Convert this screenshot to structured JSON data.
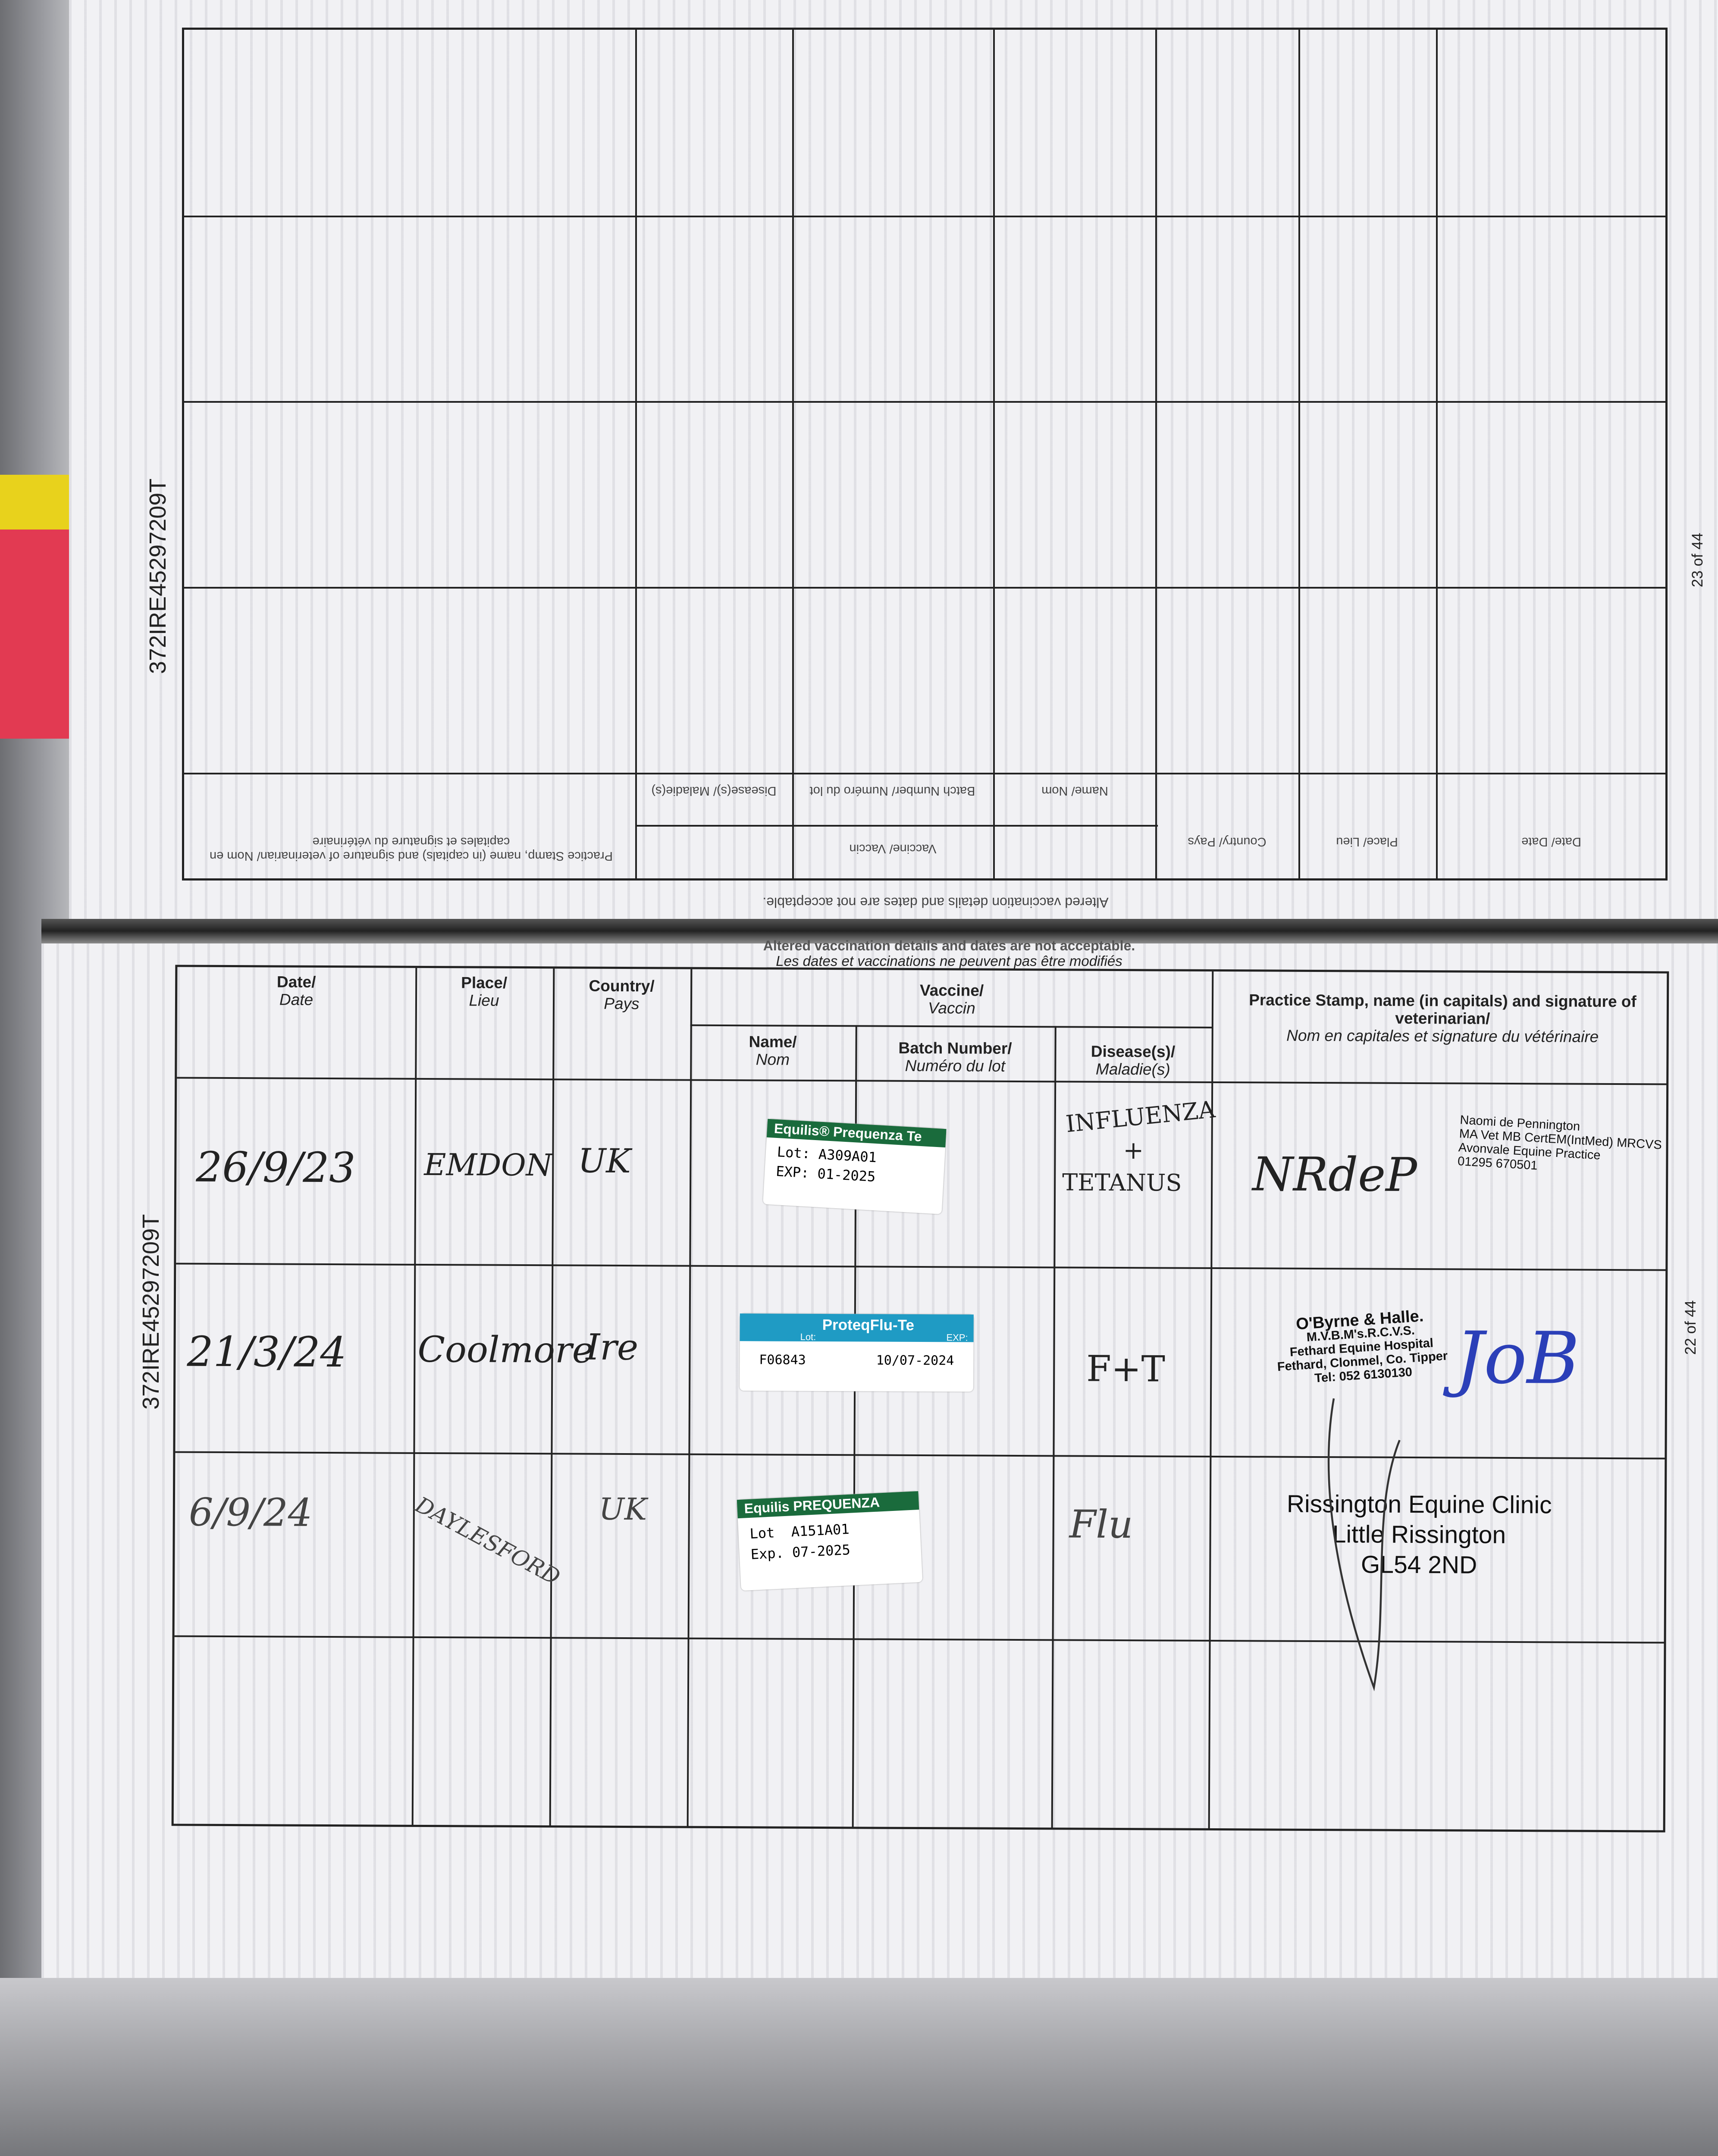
{
  "document_id": "372IRE45297209T",
  "upper_page": {
    "page_number": "23 of 44",
    "inverted_header": {
      "practice": "Practice Stamp, name (in capitals) and signature of veterinarian/ Nom en capitales et signature du vétérinaire",
      "vaccine": "Vaccine/ Vaccin",
      "name": "Name/ Nom",
      "batch": "Batch Number/ Numéro du lot",
      "disease": "Disease(s)/ Maladie(s)",
      "country": "Country/ Pays",
      "place": "Place/ Lieu",
      "date": "Date/ Date",
      "notice": "Altered vaccination details and dates are not acceptable."
    }
  },
  "lower_page": {
    "page_number": "22 of 44",
    "notice_en": "Altered vaccination details and dates are not acceptable.",
    "notice_fr": "Les dates et vaccinations ne peuvent pas être modifiés",
    "headers": {
      "date": "Date/",
      "date_fr": "Date",
      "place": "Place/",
      "place_fr": "Lieu",
      "country": "Country/",
      "country_fr": "Pays",
      "vaccine": "Vaccine/",
      "vaccine_fr": "Vaccin",
      "name": "Name/",
      "name_fr": "Nom",
      "batch": "Batch Number/",
      "batch_fr": "Numéro du lot",
      "disease": "Disease(s)/",
      "disease_fr": "Maladie(s)",
      "practice": "Practice Stamp, name (in capitals) and signature of veterinarian/",
      "practice_fr": "Nom en capitales et signature du vétérinaire"
    },
    "rows": [
      {
        "date": "26/9/23",
        "place": "EMDON",
        "country": "UK",
        "label": {
          "brand": "Equilis® Prequenza Te",
          "lot_label": "Lot:",
          "lot": "A309A01",
          "exp_label": "EXP:",
          "exp": "01-2025",
          "color": "#1a6b3c"
        },
        "disease_1": "INFLUENZA",
        "disease_2": "+",
        "disease_3": "TETANUS",
        "signature": "NRdeP",
        "stamp": [
          "Naomi de Pennington",
          "MA Vet MB CertEM(IntMed) MRCVS",
          "Avonvale Equine Practice",
          "01295 670501"
        ]
      },
      {
        "date": "21/3/24",
        "place": "Coolmore",
        "country": "Ire",
        "label": {
          "brand": "ProteqFlu-Te",
          "lot_label": "Lot:",
          "lot": "F06843",
          "exp_label": "EXP:",
          "exp": "10/07-2024",
          "color": "#1f9bc4"
        },
        "disease_1": "F+T",
        "signature": "JoB",
        "stamp": [
          "O'Byrne & Halle.",
          "M.V.B.M's.R.C.V.S.",
          "Fethard Equine Hospital",
          "Fethard, Clonmel, Co. Tipper",
          "Tel: 052 6130130"
        ]
      },
      {
        "date": "6/9/24",
        "place": "DAYLESFORD",
        "country": "UK",
        "label": {
          "brand": "Equilis PREQUENZA",
          "lot_label": "Lot",
          "lot": "A151A01",
          "exp_label": "Exp.",
          "exp": "07-2025",
          "color": "#1a6b3c"
        },
        "disease_1": "Flu",
        "stamp": [
          "Rissington Equine Clinic",
          "Little Rissington",
          "GL54 2ND"
        ]
      }
    ]
  }
}
